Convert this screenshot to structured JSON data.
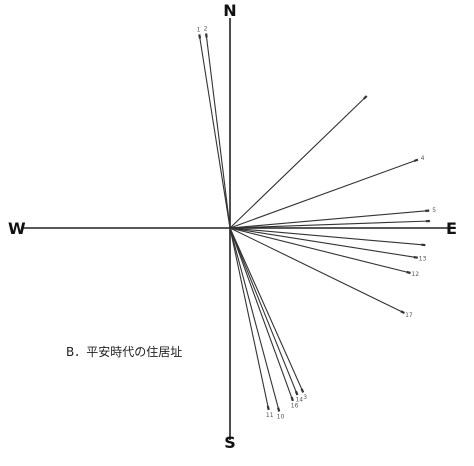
{
  "caption": "B．平安時代の住居址",
  "directions": {
    "north": "N",
    "south": "S",
    "east": "E",
    "west": "W"
  },
  "orientations": [
    {
      "label": "1",
      "bearing_deg": 351
    },
    {
      "label": "2",
      "bearing_deg": 353
    },
    {
      "label": "",
      "bearing_deg": 46
    },
    {
      "label": "4",
      "bearing_deg": 70
    },
    {
      "label": "5",
      "bearing_deg": 85
    },
    {
      "label": "",
      "bearing_deg": 88
    },
    {
      "label": "",
      "bearing_deg": 95
    },
    {
      "label": "13",
      "bearing_deg": 99
    },
    {
      "label": "12",
      "bearing_deg": 104
    },
    {
      "label": "17",
      "bearing_deg": 116
    },
    {
      "label": "11",
      "bearing_deg": 168
    },
    {
      "label": "10",
      "bearing_deg": 165
    },
    {
      "label": "16",
      "bearing_deg": 160
    },
    {
      "label": "14",
      "bearing_deg": 158
    },
    {
      "label": "3",
      "bearing_deg": 156
    }
  ]
}
